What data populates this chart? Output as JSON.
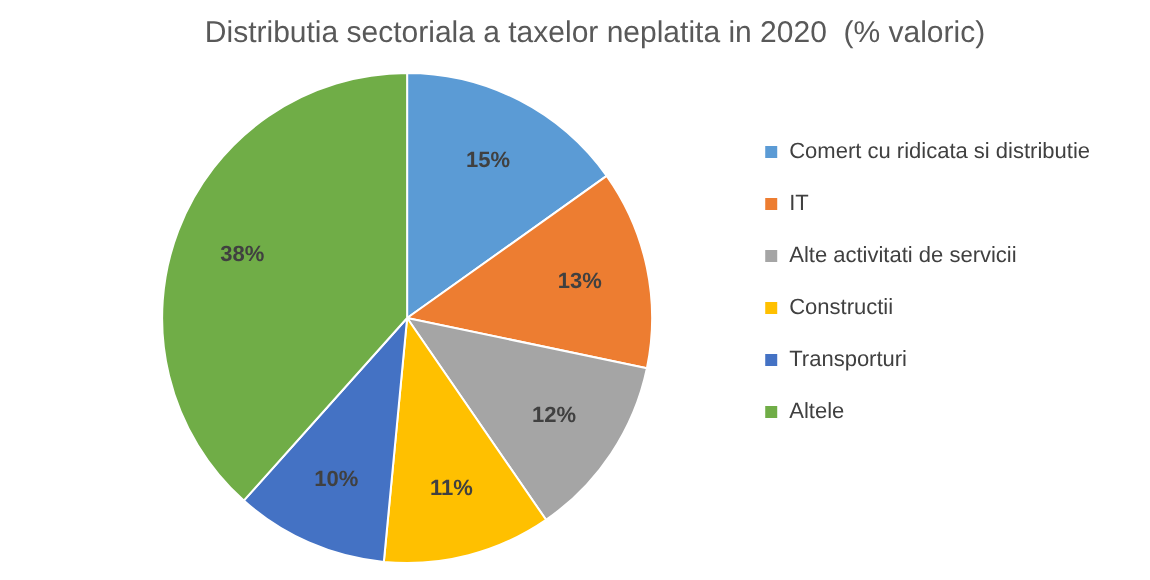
{
  "chart_data": {
    "type": "pie",
    "title": "Distributia sectoriala a taxelor neplatita in 2020  (% valoric)",
    "categories": [
      "Comert cu ridicata si distributie",
      "IT",
      "Alte activitati de servicii",
      "Constructii",
      "Transporturi",
      "Altele"
    ],
    "values": [
      15,
      13,
      12,
      11,
      10,
      38
    ],
    "colors": [
      "#5b9bd5",
      "#ed7d31",
      "#a5a5a5",
      "#ffc000",
      "#4472c4",
      "#70ad47"
    ],
    "value_labels": [
      "15%",
      "13%",
      "12%",
      "11%",
      "10%",
      "38%"
    ],
    "legend": "right"
  }
}
